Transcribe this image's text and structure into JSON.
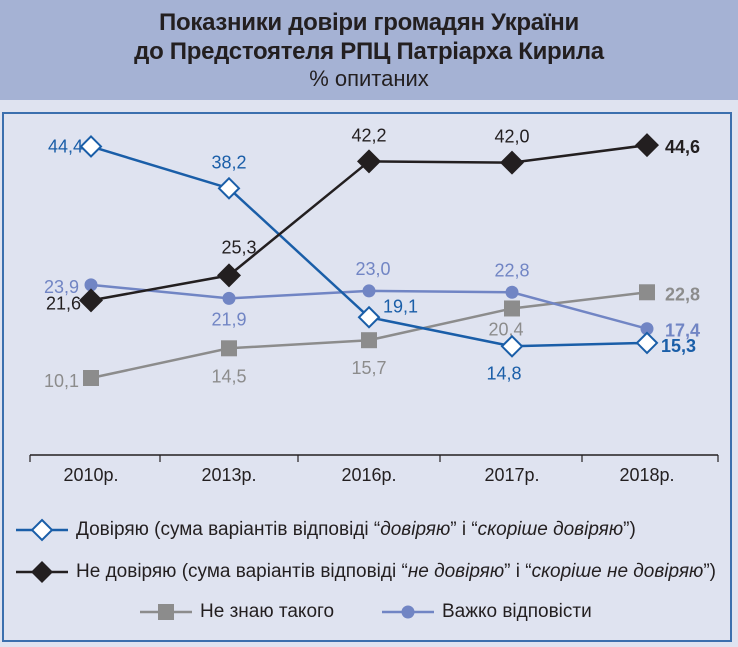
{
  "chart_data": {
    "type": "line",
    "title": "Показники довіри громадян України до Предстоятеля РПЦ Патріарха Кирила",
    "title_line1": "Показники довіри громадян України",
    "title_line2": "до Предстоятеля РПЦ Патріарха Кирила",
    "subtitle": "% опитаних",
    "categories": [
      "2010р.",
      "2013р.",
      "2016р.",
      "2017р.",
      "2018р."
    ],
    "ylim": [
      0,
      50
    ],
    "grid": false,
    "legend_position": "bottom",
    "series": [
      {
        "name": "Довіряю",
        "color": "#1a5ea8",
        "marker": "diamond-open",
        "values": [
          44.4,
          38.2,
          19.1,
          14.8,
          15.3
        ],
        "labels": [
          "44,4",
          "38,2",
          "19,1",
          "14,8",
          "15,3"
        ]
      },
      {
        "name": "Не довіряю",
        "color": "#231f20",
        "marker": "diamond-filled",
        "values": [
          21.6,
          25.3,
          42.2,
          42.0,
          44.6
        ],
        "labels": [
          "21,6",
          "25,3",
          "42,2",
          "42,0",
          "44,6"
        ]
      },
      {
        "name": "Не знаю такого",
        "color": "#8c8c8c",
        "marker": "square",
        "values": [
          10.1,
          14.5,
          15.7,
          20.4,
          22.8
        ],
        "labels": [
          "10,1",
          "14,5",
          "15,7",
          "20,4",
          "22,8"
        ]
      },
      {
        "name": "Важко відповісти",
        "color": "#7185c4",
        "marker": "circle",
        "values": [
          23.9,
          21.9,
          23.0,
          22.8,
          17.4
        ],
        "labels": [
          "23,9",
          "21,9",
          "23,0",
          "22,8",
          "17,4"
        ]
      }
    ]
  },
  "legend": {
    "trust": {
      "a": "Довіряю (сума варіантів відповіді “",
      "b": "довіряю",
      "c": "” і “",
      "d": "скоріше довіряю",
      "e": "”)"
    },
    "distrust": {
      "a": "Не довіряю (сума варіантів відповіді “",
      "b": "не довіряю",
      "c": "” і “",
      "d": "скоріше не довіряю",
      "e": "”)"
    },
    "unknown": "Не знаю такого",
    "hard": "Важко відповісти"
  }
}
